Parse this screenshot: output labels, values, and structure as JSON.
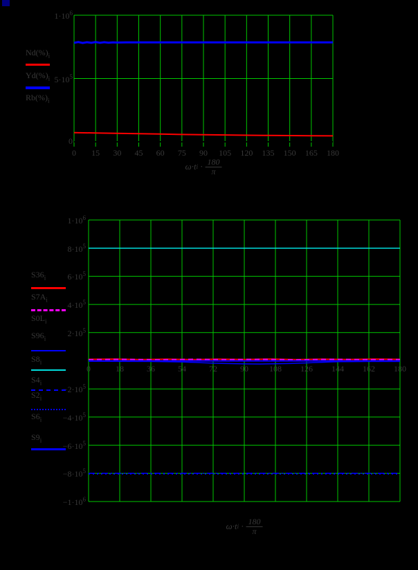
{
  "page": {
    "background": "#000000",
    "corner_marker_color": "#000080",
    "text_color": "#383838",
    "grid_color": "#00c800"
  },
  "chart_data": [
    {
      "type": "line",
      "title": "",
      "xlabel_parts": {
        "base": "ω·t",
        "sub": "i",
        "dot": "·",
        "num": "180",
        "den": "π"
      },
      "x_range": [
        0,
        180
      ],
      "y_range": [
        0,
        1000000
      ],
      "grid": true,
      "legend_position": "left",
      "x_ticks": {
        "values": [
          0,
          15,
          30,
          45,
          60,
          75,
          90,
          105,
          120,
          135,
          150,
          165,
          180
        ],
        "labels": [
          "0",
          "15",
          "30",
          "45",
          "60",
          "75",
          "90",
          "105",
          "120",
          "135",
          "150",
          "165",
          "180"
        ]
      },
      "y_ticks": {
        "values": [
          1000000,
          500000,
          0
        ],
        "labels": [
          "1·10^6",
          "5·10^5",
          "0"
        ]
      },
      "series": [
        {
          "name": "Nd(%)",
          "sub": "i",
          "color": "#ff0000",
          "width": 2,
          "dash": null,
          "points": [
            [
              0,
              72000
            ],
            [
              15,
              70000
            ],
            [
              30,
              67000
            ],
            [
              45,
              64000
            ],
            [
              60,
              61000
            ],
            [
              75,
              58000
            ],
            [
              90,
              56000
            ],
            [
              105,
              54000
            ],
            [
              120,
              52000
            ],
            [
              135,
              50000
            ],
            [
              150,
              49000
            ],
            [
              165,
              48000
            ],
            [
              180,
              47000
            ]
          ]
        },
        {
          "name": "Yd(%)",
          "sub": "i",
          "color": "#0000ff",
          "width": 3,
          "dash": null,
          "points": [
            [
              0,
              782000
            ],
            [
              3,
              788000
            ],
            [
              6,
              781000
            ],
            [
              9,
              787000
            ],
            [
              12,
              782000
            ],
            [
              15,
              788000
            ],
            [
              18,
              782000
            ],
            [
              21,
              787000
            ],
            [
              24,
              783000
            ],
            [
              27,
              786000
            ],
            [
              30,
              784000
            ],
            [
              36,
              785000
            ],
            [
              180,
              785000
            ]
          ]
        },
        {
          "name": "Rb(%)",
          "sub": "i",
          "color": "#000000",
          "width": 2,
          "dash": null,
          "points": [
            [
              0,
              0
            ],
            [
              180,
              0
            ]
          ]
        }
      ]
    },
    {
      "type": "line",
      "title": "",
      "xlabel_parts": {
        "base": "ω·t",
        "sub": "i",
        "dot": "·",
        "num": "180",
        "den": "π"
      },
      "x_range": [
        0,
        180
      ],
      "y_range": [
        -1000000,
        1000000
      ],
      "grid": true,
      "legend_position": "left",
      "x_ticks": {
        "values": [
          0,
          18,
          36,
          54,
          72,
          90,
          108,
          126,
          144,
          162,
          180
        ],
        "labels": [
          "0",
          "18",
          "36",
          "54",
          "72",
          "90",
          "108",
          "126",
          "144",
          "162",
          "180"
        ]
      },
      "y_ticks": {
        "values": [
          1000000,
          800000,
          600000,
          400000,
          200000,
          0,
          -200000,
          -400000,
          -600000,
          -800000,
          -1000000
        ],
        "labels": [
          "1·10^6",
          "8·10^5",
          "6·10^5",
          "4·10^5",
          "2·10^5",
          "",
          "−2·10^5",
          "−4·10^5",
          "−6·10^5",
          "−8·10^5",
          "−1·10^6"
        ]
      },
      "series": [
        {
          "name": "S36",
          "sub": "i",
          "color": "#ff0000",
          "width": 2,
          "dash": null,
          "points": [
            [
              0,
              10000
            ],
            [
              15,
              12000
            ],
            [
              30,
              8000
            ],
            [
              45,
              11000
            ],
            [
              60,
              8000
            ],
            [
              75,
              11000
            ],
            [
              90,
              9000
            ],
            [
              105,
              12000
            ],
            [
              120,
              8000
            ],
            [
              135,
              11000
            ],
            [
              150,
              9000
            ],
            [
              165,
              12000
            ],
            [
              180,
              10000
            ]
          ]
        },
        {
          "name": "S7A",
          "sub": "i",
          "color": "#ff00ff",
          "width": 2,
          "dash": "7,5",
          "points": [
            [
              0,
              8000
            ],
            [
              20,
              10000
            ],
            [
              40,
              7000
            ],
            [
              60,
              10000
            ],
            [
              80,
              8000
            ],
            [
              100,
              10000
            ],
            [
              120,
              7000
            ],
            [
              140,
              10000
            ],
            [
              160,
              8000
            ],
            [
              180,
              9000
            ]
          ]
        },
        {
          "name": "S0L",
          "sub": "i",
          "color": "#000000",
          "width": 1.5,
          "dash": null,
          "points": [
            [
              0,
              0
            ],
            [
              180,
              0
            ]
          ]
        },
        {
          "name": "S96",
          "sub": "i",
          "color": "#0000ff",
          "width": 1.5,
          "dash": null,
          "points": [
            [
              0,
              -4000
            ],
            [
              36,
              -5000
            ],
            [
              54,
              -9000
            ],
            [
              72,
              -17000
            ],
            [
              90,
              -22000
            ],
            [
              99,
              -23000
            ],
            [
              117,
              -19000
            ],
            [
              126,
              -15000
            ],
            [
              144,
              -7000
            ],
            [
              162,
              -5000
            ],
            [
              180,
              -5000
            ]
          ]
        },
        {
          "name": "S8",
          "sub": "i",
          "color": "#00dddd",
          "width": 1.5,
          "dash": null,
          "points": [
            [
              0,
              800000
            ],
            [
              180,
              800000
            ]
          ]
        },
        {
          "name": "S4",
          "sub": "i",
          "color": "#0000ff",
          "width": 1.5,
          "dash": "9,4,2,4",
          "points": [
            [
              0,
              -800000
            ],
            [
              180,
              -800000
            ]
          ]
        },
        {
          "name": "S2",
          "sub": "i",
          "color": "#0000ff",
          "width": 1.5,
          "dash": "2,4",
          "points": [
            [
              0,
              -805000
            ],
            [
              180,
              -805000
            ]
          ]
        },
        {
          "name": "S6",
          "sub": "i",
          "color": "#000000",
          "width": 1.5,
          "dash": null,
          "points": [
            [
              0,
              0
            ],
            [
              180,
              0
            ]
          ]
        },
        {
          "name": "S9",
          "sub": "i",
          "color": "#0000ff",
          "width": 2,
          "dash": null,
          "points": [
            [
              0,
              -1500
            ],
            [
              180,
              -1500
            ]
          ]
        }
      ]
    }
  ]
}
